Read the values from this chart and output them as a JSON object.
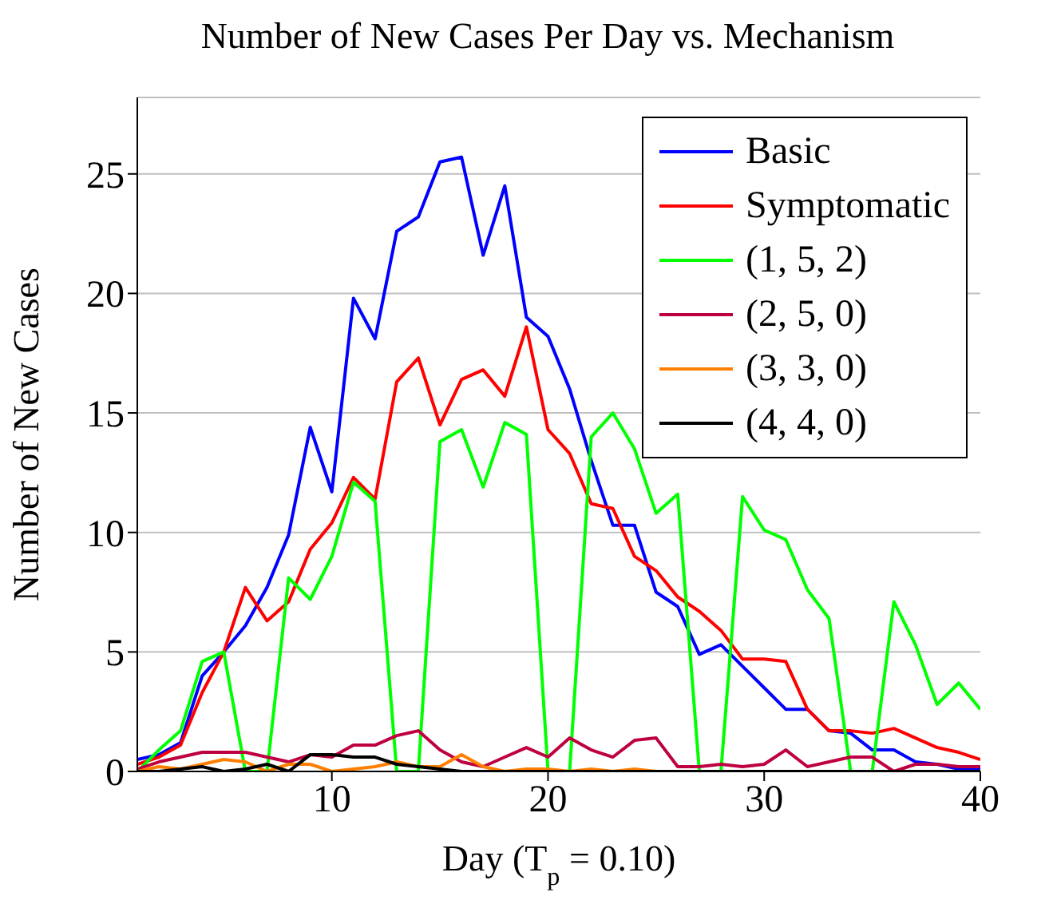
{
  "chart_data": {
    "type": "line",
    "title": "Number of New Cases Per Day vs. Mechanism",
    "xlabel": "Day (T$_{p}$ = 0.10)",
    "ylabel": "Number of New Cases",
    "x": [
      1,
      2,
      3,
      4,
      5,
      6,
      7,
      8,
      9,
      10,
      11,
      12,
      13,
      14,
      15,
      16,
      17,
      18,
      19,
      20,
      21,
      22,
      23,
      24,
      25,
      26,
      27,
      28,
      29,
      30,
      31,
      32,
      33,
      34,
      35,
      36,
      37,
      38,
      39,
      40
    ],
    "xlim": [
      1,
      40
    ],
    "xticks": [
      10,
      20,
      30,
      40
    ],
    "ylim": [
      0,
      28.2
    ],
    "yticks": [
      0,
      5,
      10,
      15,
      20,
      25
    ],
    "grid": "y",
    "legend": "top right",
    "marker": "none",
    "line_style": "solid",
    "series": [
      {
        "name": "Basic",
        "color": "#0000ff",
        "values": [
          0.5,
          0.7,
          1.2,
          4.0,
          5.0,
          6.1,
          7.7,
          9.9,
          14.4,
          11.7,
          19.8,
          18.1,
          22.6,
          23.2,
          25.5,
          25.7,
          21.6,
          24.5,
          19.0,
          18.2,
          16.0,
          13.0,
          10.3,
          10.3,
          7.5,
          6.9,
          4.9,
          5.3,
          4.4,
          3.5,
          2.6,
          2.6,
          1.7,
          1.6,
          0.9,
          0.9,
          0.4,
          0.3,
          0.1,
          0.1
        ]
      },
      {
        "name": "Symptomatic",
        "color": "#ff0000",
        "values": [
          0.3,
          0.6,
          1.1,
          3.3,
          5.0,
          7.7,
          6.3,
          7.1,
          9.3,
          10.4,
          12.3,
          11.4,
          16.3,
          17.3,
          14.5,
          16.4,
          16.8,
          15.7,
          18.6,
          14.3,
          13.3,
          11.2,
          11.0,
          9.0,
          8.4,
          7.3,
          6.7,
          5.9,
          4.7,
          4.7,
          4.6,
          2.6,
          1.7,
          1.7,
          1.6,
          1.8,
          1.4,
          1.0,
          0.8,
          0.5
        ]
      },
      {
        "name": "(1, 5, 2)",
        "color": "#00ff00",
        "values": [
          0,
          0.9,
          1.7,
          4.6,
          5.0,
          0,
          0,
          8.1,
          7.2,
          9.0,
          12.1,
          11.3,
          0,
          0,
          13.8,
          14.3,
          11.9,
          14.6,
          14.1,
          0,
          0,
          14.0,
          15.0,
          13.5,
          10.8,
          11.6,
          0,
          0,
          11.5,
          10.1,
          9.7,
          7.6,
          6.4,
          0,
          0,
          7.1,
          5.3,
          2.8,
          3.7,
          2.6
        ]
      },
      {
        "name": "(2, 5, 0)",
        "color": "#bf0040",
        "values": [
          0.1,
          0.4,
          0.6,
          0.8,
          0.8,
          0.8,
          0.6,
          0.4,
          0.7,
          0.6,
          1.1,
          1.1,
          1.5,
          1.7,
          0.9,
          0.4,
          0.2,
          0.6,
          1.0,
          0.6,
          1.4,
          0.9,
          0.6,
          1.3,
          1.4,
          0.2,
          0.2,
          0.3,
          0.2,
          0.3,
          0.9,
          0.2,
          0.4,
          0.6,
          0.6,
          0,
          0.3,
          0.3,
          0.2,
          0.2
        ]
      },
      {
        "name": "(3, 3, 0)",
        "color": "#ff8000",
        "values": [
          0,
          0.2,
          0.1,
          0.3,
          0.5,
          0.4,
          0,
          0.3,
          0.3,
          0,
          0.1,
          0.2,
          0.4,
          0.2,
          0.2,
          0.7,
          0.2,
          0,
          0.1,
          0.1,
          0,
          0.1,
          0,
          0.1,
          0,
          0,
          null,
          null,
          null,
          null,
          null,
          null,
          null,
          null,
          null,
          null,
          null,
          null,
          null,
          null
        ]
      },
      {
        "name": "(4, 4, 0)",
        "color": "#000000",
        "values": [
          0,
          0,
          0.1,
          0.2,
          0,
          0.1,
          0.3,
          0,
          0.7,
          0.7,
          0.6,
          0.6,
          0.3,
          0.2,
          0.1,
          0,
          0,
          0,
          0,
          0,
          0,
          0,
          0,
          0,
          0,
          0,
          0,
          0,
          0,
          0,
          0,
          0,
          0,
          0,
          0,
          0,
          0,
          0,
          0,
          0
        ]
      }
    ]
  }
}
